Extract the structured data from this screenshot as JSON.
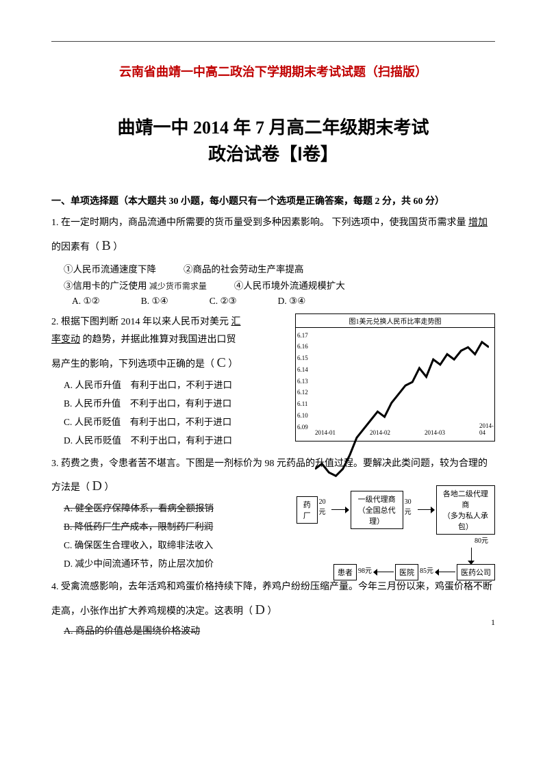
{
  "page": {
    "red_title": "云南省曲靖一中高二政治下学期期末考试试题（扫描版）",
    "main_title_l1": "曲靖一中 2014 年 7 月高二年级期末考试",
    "main_title_l2": "政治试卷【Ⅰ卷】",
    "page_number": "1"
  },
  "section1": {
    "head": "一、单项选择题（本大题共 30 小题，每小题只有一个选项是正确答案，每题 2 分，共 60 分）"
  },
  "q1": {
    "stem_a": "1. 在一定时期内，商品流通中所需要的货币量受到多种因素影响。 下列选项中，使我国货币需求量",
    "stem_b": "增加",
    "stem_c": "的因素有（",
    "hand_answer": "B",
    "stem_d": "）",
    "opt1": "①人民币流通速度下降",
    "opt2": "②商品的社会劳动生产率提高",
    "opt3": "③信用卡的广泛使用",
    "scribble": "减少货币需求量",
    "opt4": "④人民币境外流通规模扩大",
    "A": "A. ①②",
    "B": "B. ①④",
    "C": "C. ②③",
    "D": "D. ③④"
  },
  "q2": {
    "stem_a": "2. 根据下图判断 2014 年以来人民币对美元",
    "stem_b": "汇率变动",
    "stem_c": "的趋势，并据此推算对我国进出口贸易产生的影响，下列选项中正确的是（",
    "hand_answer": "C",
    "stem_d": "）",
    "optA": "A. 人民币升值　有利于出口，不利于进口",
    "optB": "B. 人民币升值　不利于出口，有利于进口",
    "optC": "C. 人民币贬值　有利于出口，不利于进口",
    "optD": "D. 人民币贬值　不利于出口，有利于进口",
    "chart": {
      "title": "图1美元兑换人民币比率走势图",
      "yticks": [
        "6.17",
        "6.16",
        "6.15",
        "6.14",
        "6.13",
        "6.12",
        "6.11",
        "6.10",
        "6.09"
      ],
      "xticks": [
        "2014-01",
        "2014-02",
        "2014-03",
        "2014-04"
      ],
      "points": [
        [
          0.0,
          0.78
        ],
        [
          0.04,
          0.75
        ],
        [
          0.08,
          0.8
        ],
        [
          0.12,
          0.82
        ],
        [
          0.16,
          0.78
        ],
        [
          0.2,
          0.7
        ],
        [
          0.24,
          0.6
        ],
        [
          0.28,
          0.55
        ],
        [
          0.32,
          0.5
        ],
        [
          0.36,
          0.45
        ],
        [
          0.4,
          0.48
        ],
        [
          0.44,
          0.4
        ],
        [
          0.48,
          0.35
        ],
        [
          0.52,
          0.3
        ],
        [
          0.56,
          0.28
        ],
        [
          0.6,
          0.2
        ],
        [
          0.64,
          0.25
        ],
        [
          0.68,
          0.15
        ],
        [
          0.72,
          0.18
        ],
        [
          0.76,
          0.12
        ],
        [
          0.8,
          0.15
        ],
        [
          0.84,
          0.1
        ],
        [
          0.88,
          0.08
        ],
        [
          0.92,
          0.12
        ],
        [
          0.96,
          0.05
        ],
        [
          1.0,
          0.08
        ]
      ],
      "line_color": "#000000"
    }
  },
  "q3": {
    "stem_a": "3. 药费之贵，令患者苦不堪言。下图是一剂标价为 98 元药品的升值过程。要解决此类问题，较为合理的方法是（",
    "hand_answer": "D",
    "stem_b": "）",
    "optA": "A. 健全医疗保障体系，看病全额报销",
    "optA_u": "全额报销",
    "optB": "B. 降低药厂生产成本，限制药厂利润",
    "optC": "C. 确保医生合理收入，取缔非法收入",
    "optD": "D. 减少中间流通环节，防止层次加价",
    "diagram": {
      "n1": "药厂",
      "p1": "20元",
      "n2_l1": "一级代理商",
      "n2_l2": "（全国总代理）",
      "p2": "30元",
      "n3_l1": "各地二级代理商",
      "n3_l2": "（多为私人承包）",
      "p3": "80元",
      "n4": "医药公司",
      "p4": "85元",
      "n5": "医院",
      "p5": "98元",
      "n6": "患者"
    }
  },
  "q4": {
    "stem": "4. 受禽流感影响，去年活鸡和鸡蛋价格持续下降，养鸡户纷纷压缩产量。今年三月份以来，鸡蛋价格不断走高，小张作出扩大养鸡规模的决定。这表明（",
    "hand_answer": "D",
    "stem_b": "）",
    "optA": "A. 商品的价值总是围绕价格波动"
  },
  "colors": {
    "title_red": "#c00000",
    "text": "#000000"
  }
}
